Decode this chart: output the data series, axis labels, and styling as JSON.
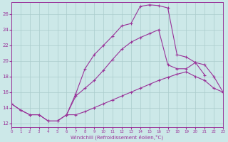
{
  "background_color": "#cce8e8",
  "grid_color": "#aacccc",
  "line_color": "#993399",
  "xlim": [
    0,
    23
  ],
  "ylim": [
    11.5,
    27.5
  ],
  "xticks": [
    0,
    1,
    2,
    3,
    4,
    5,
    6,
    7,
    8,
    9,
    10,
    11,
    12,
    13,
    14,
    15,
    16,
    17,
    18,
    19,
    20,
    21,
    22,
    23
  ],
  "yticks": [
    12,
    14,
    16,
    18,
    20,
    22,
    24,
    26
  ],
  "xlabel": "Windchill (Refroidissement éolien,°C)",
  "line1_x": [
    0,
    1,
    2,
    3,
    4,
    5,
    6,
    7,
    8,
    9,
    10,
    11,
    12,
    13,
    14,
    15,
    16,
    17,
    18,
    19,
    20,
    21,
    22,
    23
  ],
  "line1_y": [
    14.5,
    13.7,
    13.1,
    13.1,
    12.3,
    12.3,
    13.1,
    13.1,
    13.5,
    14.0,
    14.5,
    15.0,
    15.5,
    16.0,
    16.5,
    17.0,
    17.5,
    17.9,
    18.3,
    18.6,
    18.0,
    17.5,
    16.5,
    16.0
  ],
  "line2_x": [
    0,
    1,
    2,
    3,
    4,
    5,
    6,
    7,
    8,
    9,
    10,
    11,
    12,
    13,
    14,
    15,
    16,
    17,
    18,
    19,
    20,
    21
  ],
  "line2_y": [
    14.5,
    13.7,
    13.1,
    13.1,
    12.3,
    12.3,
    13.1,
    15.8,
    19.0,
    20.8,
    22.0,
    23.2,
    24.5,
    24.8,
    27.0,
    27.2,
    27.1,
    26.8,
    20.8,
    20.5,
    19.8,
    18.2
  ],
  "line3_x": [
    6,
    7,
    8,
    9,
    10,
    11,
    12,
    13,
    14,
    15,
    16,
    17,
    18,
    19,
    20,
    21,
    22,
    23
  ],
  "line3_y": [
    13.1,
    15.5,
    16.5,
    17.5,
    18.8,
    20.2,
    21.5,
    22.4,
    23.0,
    23.5,
    24.0,
    19.5,
    19.0,
    19.0,
    19.8,
    19.5,
    18.0,
    16.0
  ]
}
